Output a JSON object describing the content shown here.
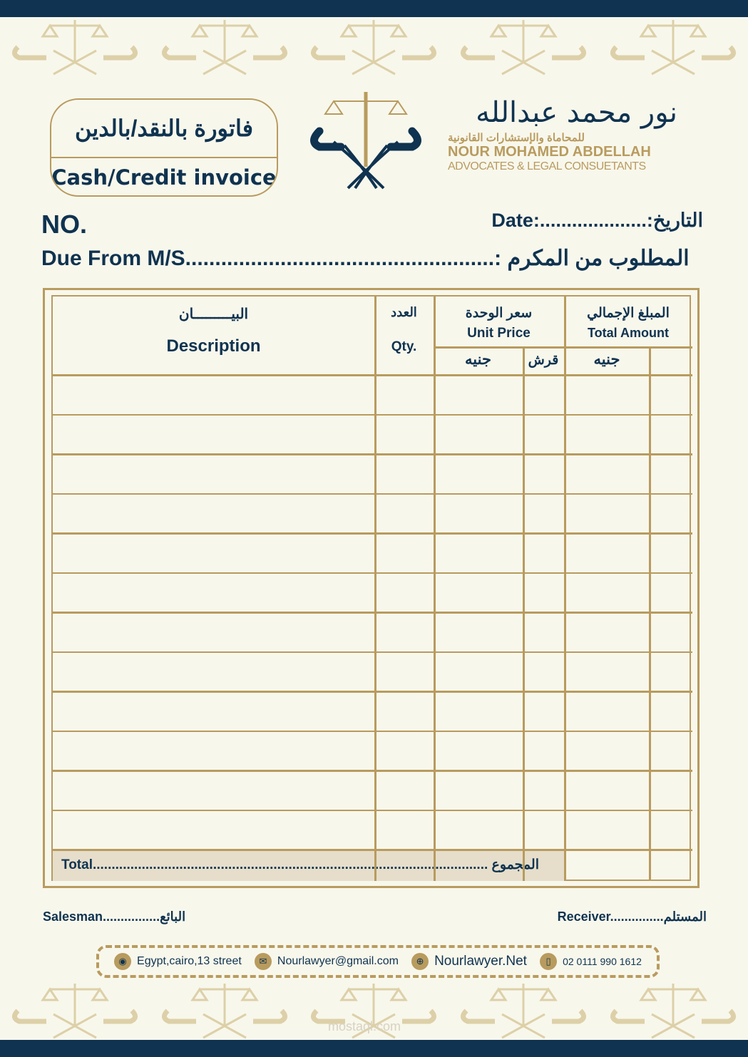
{
  "colors": {
    "navy": "#0f3350",
    "gold": "#b89b5e",
    "paper": "#f8f7ec",
    "total_fill": "#e6decb"
  },
  "title": {
    "arabic": "فاتورة بالنقد/بالدين",
    "english": "Cash/Credit invoice"
  },
  "brand": {
    "arabic_name": "نور محمد عبدالله",
    "arabic_sub": "للمحاماة والإستشارات القانونية",
    "english_name": "NOUR MOHAMED ABDELLAH",
    "english_sub": "ADVOCATES & LEGAL CONSUETANTS",
    "logo_icon": "scales-of-justice-icon"
  },
  "fields": {
    "no": "NO.",
    "date": "Date:....................:التاريخ",
    "due": "Due From M/S....................................................: المطلوب من المكرم"
  },
  "table": {
    "description_ar": "البيـــــــــان",
    "description_en": "Description",
    "qty_ar": "العدد",
    "qty_en": "Qty.",
    "unit_ar": "سعر الوحدة",
    "unit_en": "Unit Price",
    "total_ar": "المبلغ الإجمالي",
    "total_en": "Total Amount",
    "pound": "جنيه",
    "piaster": "قرش",
    "total_row": "Total.........................................................................................................  المجموع"
  },
  "signatures": {
    "salesman": "Salesman................البائع",
    "receiver": "Receiver...............المستلم"
  },
  "contact": [
    {
      "icon": "location-pin-icon",
      "text": "Egypt,cairo,13 street"
    },
    {
      "icon": "envelope-icon",
      "text": "Nourlawyer@gmail.com"
    },
    {
      "icon": "globe-icon",
      "text": "Nourlawyer.Net"
    },
    {
      "icon": "phone-icon",
      "text": "02 0111 990 1612"
    }
  ],
  "watermark": "mostaql.com"
}
